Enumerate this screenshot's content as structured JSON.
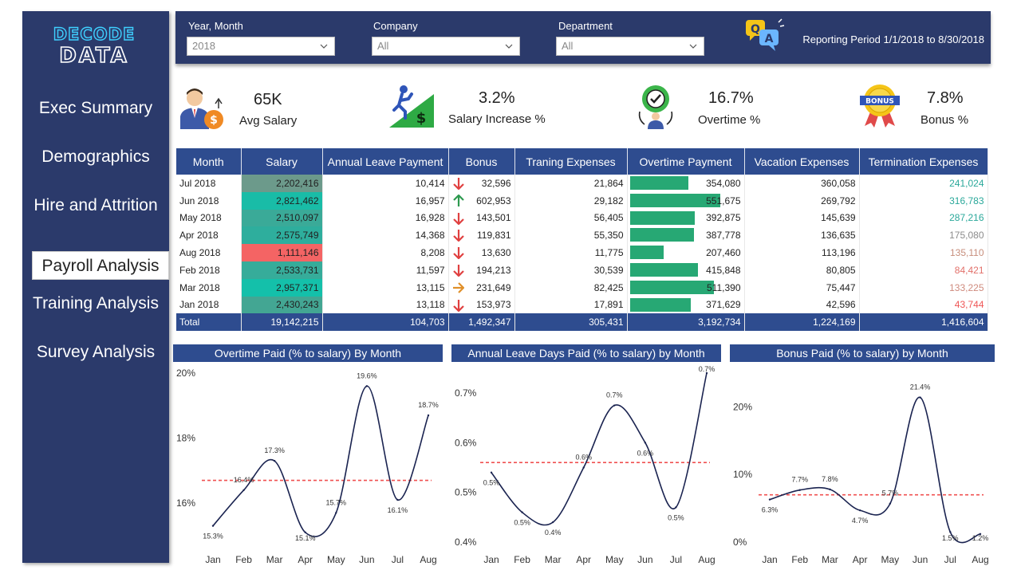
{
  "logo": {
    "line1": "DECODE",
    "line2": "DATA"
  },
  "nav": [
    {
      "label": "Exec Summary",
      "active": false
    },
    {
      "label": "Demographics",
      "active": false
    },
    {
      "label": "Hire and Attrition",
      "active": false
    },
    {
      "label": "Payroll Analysis",
      "active": true
    },
    {
      "label": "Training Analysis",
      "active": false
    },
    {
      "label": "Survey Analysis",
      "active": false
    }
  ],
  "filters": {
    "year_month": {
      "label": "Year, Month",
      "value": "2018"
    },
    "company": {
      "label": "Company",
      "value": "All"
    },
    "department": {
      "label": "Department",
      "value": "All"
    },
    "reporting_period": "Reporting Period 1/1/2018 to 8/30/2018",
    "qa_icon": "qa-icon"
  },
  "kpis": [
    {
      "value": "65K",
      "label": "Avg Salary",
      "icon": "salary-icon"
    },
    {
      "value": "3.2%",
      "label": "Salary Increase %",
      "icon": "growth-icon"
    },
    {
      "value": "16.7%",
      "label": "Overtime %",
      "icon": "overtime-icon"
    },
    {
      "value": "7.8%",
      "label": "Bonus %",
      "icon": "bonus-badge-icon"
    }
  ],
  "table": {
    "headers": [
      "Month",
      "Salary",
      "Annual Leave Payment",
      "Bonus",
      "Traning Expenses",
      "Overtime Payment",
      "Vacation Expenses",
      "Termination Expenses"
    ],
    "rows": [
      {
        "month": "Jul 2018",
        "salary": "2,202,416",
        "leave": "10,414",
        "bonus": "32,596",
        "bonus_trend": "down",
        "training": "21,864",
        "overtime": "354,080",
        "overtime_value": 354080,
        "vacation": "360,058",
        "termination": "241,024",
        "salary_color": "#6c9a8b",
        "term_color": "#2aa89a"
      },
      {
        "month": "Jun 2018",
        "salary": "2,821,462",
        "leave": "16,957",
        "bonus": "602,953",
        "bonus_trend": "up",
        "training": "29,182",
        "overtime": "551,675",
        "overtime_value": 551675,
        "vacation": "269,792",
        "termination": "316,783",
        "salary_color": "#19bca7",
        "term_color": "#2aa89a"
      },
      {
        "month": "May 2018",
        "salary": "2,510,097",
        "leave": "16,928",
        "bonus": "143,501",
        "bonus_trend": "down",
        "training": "56,405",
        "overtime": "392,875",
        "overtime_value": 392875,
        "vacation": "145,639",
        "termination": "287,216",
        "salary_color": "#3aaa98",
        "term_color": "#2aa89a"
      },
      {
        "month": "Apr 2018",
        "salary": "2,575,749",
        "leave": "14,368",
        "bonus": "119,831",
        "bonus_trend": "down",
        "training": "55,350",
        "overtime": "387,778",
        "overtime_value": 387778,
        "vacation": "136,635",
        "termination": "175,080",
        "salary_color": "#2eae9d",
        "term_color": "#8c8c8c"
      },
      {
        "month": "Aug 2018",
        "salary": "1,111,146",
        "leave": "8,208",
        "bonus": "13,630",
        "bonus_trend": "down",
        "training": "11,775",
        "overtime": "207,460",
        "overtime_value": 207460,
        "vacation": "113,196",
        "termination": "135,110",
        "salary_color": "#f46464",
        "term_color": "#c78e7c"
      },
      {
        "month": "Feb 2018",
        "salary": "2,533,731",
        "leave": "11,597",
        "bonus": "194,213",
        "bonus_trend": "down",
        "training": "30,539",
        "overtime": "415,848",
        "overtime_value": 415848,
        "vacation": "80,805",
        "termination": "84,421",
        "salary_color": "#36ac9a",
        "term_color": "#e2706a"
      },
      {
        "month": "Mar 2018",
        "salary": "2,957,371",
        "leave": "13,115",
        "bonus": "231,649",
        "bonus_trend": "flat",
        "training": "82,425",
        "overtime": "511,390",
        "overtime_value": 511390,
        "vacation": "75,447",
        "termination": "133,225",
        "salary_color": "#14c0aa",
        "term_color": "#cf8a7d"
      },
      {
        "month": "Jan 2018",
        "salary": "2,430,243",
        "leave": "13,118",
        "bonus": "153,973",
        "bonus_trend": "down",
        "training": "17,891",
        "overtime": "371,629",
        "overtime_value": 371629,
        "vacation": "42,596",
        "termination": "43,744",
        "salary_color": "#43a693",
        "term_color": "#ef5656"
      }
    ],
    "total": {
      "label": "Total",
      "salary": "19,142,215",
      "leave": "104,703",
      "bonus": "1,492,347",
      "training": "305,431",
      "overtime": "3,192,734",
      "vacation": "1,224,169",
      "termination": "1,416,604"
    },
    "overtime_max": 551675
  },
  "chart_data": [
    {
      "type": "line",
      "title": "Overtime Paid (% to salary) By Month",
      "categories": [
        "Jan",
        "Feb",
        "Mar",
        "Apr",
        "May",
        "Jun",
        "Jul",
        "Aug"
      ],
      "values": [
        15.3,
        16.4,
        17.3,
        15.1,
        15.7,
        19.6,
        16.1,
        18.7
      ],
      "labels": [
        "15.3%",
        "16.4%",
        "17.3%",
        "15.1%",
        "15.7%",
        "19.6%",
        "16.1%",
        "18.7%"
      ],
      "average": 16.7,
      "yticks": [
        {
          "v": 16,
          "label": "16%"
        },
        {
          "v": 18,
          "label": "18%"
        },
        {
          "v": 20,
          "label": "20%"
        }
      ],
      "ylim": [
        14.8,
        20
      ]
    },
    {
      "type": "line",
      "title": "Annual Leave Days Paid (% to salary) by Month",
      "categories": [
        "Jan",
        "Feb",
        "Mar",
        "Apr",
        "May",
        "Jun",
        "Jul",
        "Aug"
      ],
      "values": [
        0.54,
        0.46,
        0.44,
        0.55,
        0.675,
        0.6,
        0.47,
        0.74
      ],
      "labels": [
        "0.5%",
        "0.5%",
        "0.4%",
        "0.6%",
        "0.7%",
        "0.6%",
        "0.5%",
        "0.7%"
      ],
      "average": 0.56,
      "yticks": [
        {
          "v": 0.4,
          "label": "0.4%"
        },
        {
          "v": 0.5,
          "label": "0.5%"
        },
        {
          "v": 0.6,
          "label": "0.6%"
        },
        {
          "v": 0.7,
          "label": "0.7%"
        }
      ],
      "ylim": [
        0.4,
        0.74
      ]
    },
    {
      "type": "line",
      "title": "Bonus Paid (% to salary) by Month",
      "categories": [
        "Jan",
        "Feb",
        "Mar",
        "Apr",
        "May",
        "Jun",
        "Jul",
        "Aug"
      ],
      "values": [
        6.3,
        7.7,
        7.8,
        4.7,
        5.7,
        21.4,
        1.5,
        1.2
      ],
      "labels": [
        "6.3%",
        "7.7%",
        "7.8%",
        "4.7%",
        "5.7%",
        "21.4%",
        "1.5%",
        "1.2%"
      ],
      "average": 7.0,
      "yticks": [
        {
          "v": 0,
          "label": "0%"
        },
        {
          "v": 10,
          "label": "10%"
        },
        {
          "v": 20,
          "label": "20%"
        }
      ],
      "ylim": [
        0,
        25
      ]
    }
  ]
}
